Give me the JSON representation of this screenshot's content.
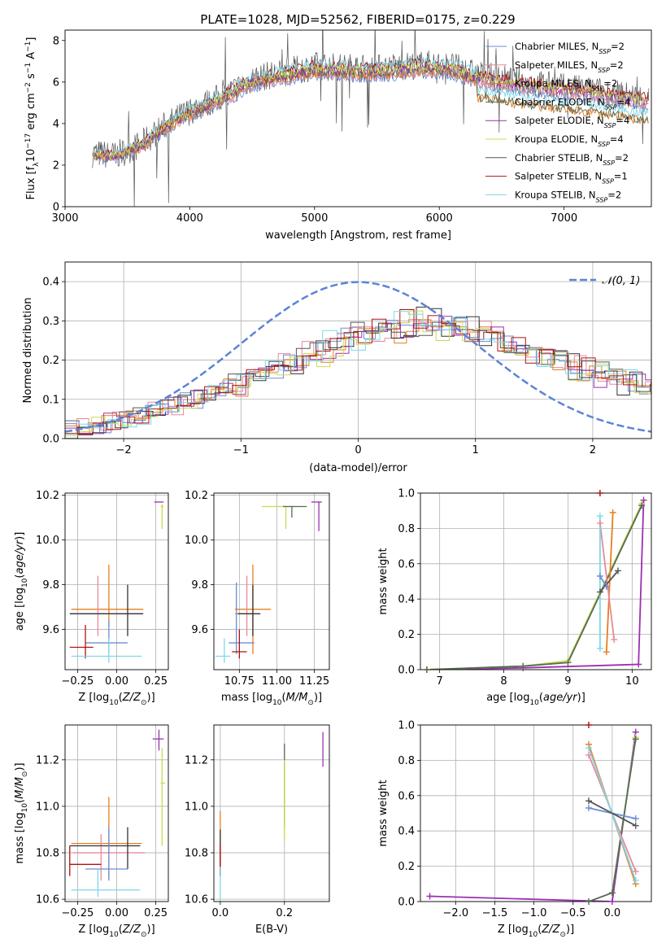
{
  "title": "PLATE=1028, MJD=52562, FIBERID=0175, z=0.229",
  "colors": [
    "#6b8fd6",
    "#e8889a",
    "#e67e22",
    "#333333",
    "#9b30b0",
    "#c8dc50",
    "#555555",
    "#b01010",
    "#7dd8e8"
  ],
  "chart_data": [
    {
      "id": "spectrum",
      "type": "line",
      "xlabel": "wavelength [Angstrom, rest frame]",
      "ylabel": "Flux [f_λ 10^-17 erg cm^-2 s^-1 A^-1]",
      "xlim": [
        3000,
        7700
      ],
      "ylim": [
        0,
        8.5
      ],
      "xticks": [
        3000,
        4000,
        5000,
        6000,
        7000
      ],
      "yticks": [
        0,
        2,
        4,
        6,
        8
      ],
      "grid": false,
      "legend_position": "top-right",
      "data_points_approx": [
        [
          3230,
          2.5
        ],
        [
          3400,
          2.4
        ],
        [
          3600,
          2.9
        ],
        [
          3800,
          3.8
        ],
        [
          4000,
          4.5
        ],
        [
          4300,
          5.3
        ],
        [
          4500,
          6.0
        ],
        [
          5000,
          6.6
        ],
        [
          5500,
          6.5
        ],
        [
          5900,
          6.7
        ],
        [
          6100,
          6.6
        ],
        [
          6300,
          6.2
        ],
        [
          6600,
          5.9
        ],
        [
          7000,
          5.6
        ],
        [
          7300,
          5.4
        ],
        [
          7600,
          5.1
        ]
      ],
      "series": [
        {
          "name": "Chabrier MILES, N_SSP=2",
          "color": "#6b8fd6"
        },
        {
          "name": "Salpeter MILES, N_SSP=2",
          "color": "#e8889a"
        },
        {
          "name": "Kroupa MILES, N_SSP=2",
          "color": "#e67e22"
        },
        {
          "name": "Chabrier ELODIE, N_SSP=4",
          "color": "#556b55"
        },
        {
          "name": "Salpeter ELODIE, N_SSP=4",
          "color": "#9b30b0"
        },
        {
          "name": "Kroupa ELODIE, N_SSP=4",
          "color": "#c8dc50"
        },
        {
          "name": "Chabrier STELIB, N_SSP=2",
          "color": "#555555"
        },
        {
          "name": "Salpeter STELIB, N_SSP=1",
          "color": "#b01010"
        },
        {
          "name": "Kroupa STELIB, N_SSP=2",
          "color": "#7dd8e8"
        }
      ]
    },
    {
      "id": "residuals",
      "type": "line",
      "xlabel": "(data-model)/error",
      "ylabel": "Normed distribution",
      "xlim": [
        -2.5,
        2.5
      ],
      "ylim": [
        0,
        0.45
      ],
      "xticks": [
        -2,
        -1,
        0,
        1,
        2
      ],
      "yticks": [
        0.0,
        0.1,
        0.2,
        0.3,
        0.4
      ],
      "grid": true,
      "legend_position": "top-right",
      "legend_label": "𝒩(0, 1)",
      "gaussian": {
        "mean": 0,
        "sigma": 1,
        "color": "#5b84d6"
      },
      "hist_envelope": [
        [
          -2.5,
          0.02
        ],
        [
          -2.0,
          0.05
        ],
        [
          -1.5,
          0.09
        ],
        [
          -1.0,
          0.14
        ],
        [
          -0.5,
          0.2
        ],
        [
          0.0,
          0.26
        ],
        [
          0.5,
          0.3
        ],
        [
          1.0,
          0.28
        ],
        [
          1.5,
          0.22
        ],
        [
          2.0,
          0.17
        ],
        [
          2.5,
          0.13
        ]
      ]
    },
    {
      "id": "age_vs_Z",
      "type": "scatter",
      "xlabel": "Z [log10(Z/Z⊙)]",
      "ylabel": "age  [log10(age/yr)]",
      "xlim": [
        -0.33,
        0.33
      ],
      "ylim": [
        9.42,
        10.21
      ],
      "xticks": [
        -0.25,
        0.0,
        0.25
      ],
      "yticks": [
        9.6,
        9.8,
        10.0,
        10.2
      ],
      "grid": true,
      "points": [
        {
          "x": 0.28,
          "y": 10.17,
          "xerr": [
            0.04,
            0.02
          ],
          "yerr": [
            0.0,
            0.0
          ],
          "color": "#9b30b0"
        },
        {
          "x": 0.29,
          "y": 10.15,
          "xerr": [
            0.01,
            0.01
          ],
          "yerr": [
            0.1,
            0.01
          ],
          "color": "#c8dc50"
        },
        {
          "x": -0.05,
          "y": 9.69,
          "xerr": [
            0.24,
            0.22
          ],
          "yerr": [
            0.08,
            0.2
          ],
          "color": "#e67e22"
        },
        {
          "x": -0.12,
          "y": 9.67,
          "xerr": [
            0.18,
            0.28
          ],
          "yerr": [
            0.1,
            0.17
          ],
          "color": "#e8889a"
        },
        {
          "x": 0.07,
          "y": 9.67,
          "xerr": [
            0.37,
            0.1
          ],
          "yerr": [
            0.1,
            0.13
          ],
          "color": "#333333"
        },
        {
          "x": -0.05,
          "y": 9.54,
          "xerr": [
            0.15,
            0.12
          ],
          "yerr": [
            0.05,
            0.1
          ],
          "color": "#6b8fd6"
        },
        {
          "x": -0.2,
          "y": 9.52,
          "xerr": [
            0.1,
            0.05
          ],
          "yerr": [
            0.05,
            0.1
          ],
          "color": "#b01010"
        },
        {
          "x": -0.05,
          "y": 9.48,
          "xerr": [
            0.24,
            0.21
          ],
          "yerr": [
            0.03,
            0.08
          ],
          "color": "#7dd8e8"
        }
      ]
    },
    {
      "id": "age_vs_mass",
      "type": "scatter",
      "xlabel": "mass [log10(M/M⊙)]",
      "ylabel": "",
      "xlim": [
        10.58,
        11.35
      ],
      "ylim": [
        9.42,
        10.21
      ],
      "xticks": [
        10.75,
        11.0,
        11.25
      ],
      "yticks": [
        9.6,
        9.8,
        10.0,
        10.2
      ],
      "grid": true,
      "points": [
        {
          "x": 11.28,
          "y": 10.17,
          "xerr": [
            0.05,
            0.02
          ],
          "yerr": [
            0.13,
            0.0
          ],
          "color": "#9b30b0"
        },
        {
          "x": 11.06,
          "y": 10.15,
          "xerr": [
            0.16,
            0.06
          ],
          "yerr": [
            0.1,
            0.0
          ],
          "color": "#c8dc50"
        },
        {
          "x": 11.1,
          "y": 10.15,
          "xerr": [
            0.06,
            0.1
          ],
          "yerr": [
            0.05,
            0.0
          ],
          "color": "#556b55"
        },
        {
          "x": 10.84,
          "y": 9.69,
          "xerr": [
            0.12,
            0.12
          ],
          "yerr": [
            0.2,
            0.2
          ],
          "color": "#e67e22"
        },
        {
          "x": 10.8,
          "y": 9.67,
          "xerr": [
            0.08,
            0.08
          ],
          "yerr": [
            0.1,
            0.17
          ],
          "color": "#e8889a"
        },
        {
          "x": 10.84,
          "y": 9.67,
          "xerr": [
            0.1,
            0.05
          ],
          "yerr": [
            0.1,
            0.13
          ],
          "color": "#333333"
        },
        {
          "x": 10.73,
          "y": 9.54,
          "xerr": [
            0.05,
            0.12
          ],
          "yerr": [
            0.05,
            0.27
          ],
          "color": "#6b8fd6"
        },
        {
          "x": 10.75,
          "y": 9.5,
          "xerr": [
            0.05,
            0.05
          ],
          "yerr": [
            0.03,
            0.1
          ],
          "color": "#b01010"
        },
        {
          "x": 10.65,
          "y": 9.48,
          "xerr": [
            0.06,
            0.04
          ],
          "yerr": [
            0.03,
            0.08
          ],
          "color": "#7dd8e8"
        }
      ]
    },
    {
      "id": "weight_vs_age",
      "type": "line",
      "xlabel": "age  [log10(age/yr)]",
      "ylabel": "mass weight",
      "xlim": [
        6.7,
        10.3
      ],
      "ylim": [
        0,
        1
      ],
      "xticks": [
        7,
        8,
        9,
        10
      ],
      "yticks": [
        0.0,
        0.2,
        0.4,
        0.6,
        0.8,
        1.0
      ],
      "grid": true,
      "series": [
        {
          "color": "#b01010",
          "points": [
            [
              9.5,
              1.0
            ]
          ]
        },
        {
          "color": "#9b30b0",
          "points": [
            [
              6.8,
              0.0
            ],
            [
              8.3,
              0.01
            ],
            [
              10.1,
              0.03
            ],
            [
              10.18,
              0.96
            ]
          ]
        },
        {
          "color": "#c8dc50",
          "points": [
            [
              6.8,
              0.0
            ],
            [
              8.3,
              0.02
            ],
            [
              9.0,
              0.05
            ],
            [
              10.15,
              0.94
            ]
          ]
        },
        {
          "color": "#556b55",
          "points": [
            [
              6.8,
              0.0
            ],
            [
              8.3,
              0.02
            ],
            [
              9.0,
              0.04
            ],
            [
              10.15,
              0.93
            ]
          ]
        },
        {
          "color": "#e67e22",
          "points": [
            [
              9.6,
              0.1
            ],
            [
              9.7,
              0.89
            ]
          ]
        },
        {
          "color": "#e8889a",
          "points": [
            [
              9.5,
              0.83
            ],
            [
              9.72,
              0.17
            ]
          ]
        },
        {
          "color": "#7dd8e8",
          "points": [
            [
              9.5,
              0.87
            ],
            [
              9.5,
              0.12
            ]
          ]
        },
        {
          "color": "#6b8fd6",
          "points": [
            [
              9.5,
              0.53
            ],
            [
              9.6,
              0.47
            ]
          ]
        },
        {
          "color": "#555555",
          "points": [
            [
              9.5,
              0.44
            ],
            [
              9.78,
              0.56
            ]
          ]
        }
      ]
    },
    {
      "id": "mass_vs_Z",
      "type": "scatter",
      "xlabel": "Z [log10(Z/Z⊙)]",
      "ylabel": "mass [log10(M/M⊙)]",
      "xlim": [
        -0.33,
        0.33
      ],
      "ylim": [
        10.59,
        11.35
      ],
      "xticks": [
        -0.25,
        0.0,
        0.25
      ],
      "yticks": [
        10.6,
        10.8,
        11.0,
        11.2
      ],
      "grid": true,
      "points": [
        {
          "x": 0.27,
          "y": 11.29,
          "xerr": [
            0.04,
            0.03
          ],
          "yerr": [
            0.05,
            0.04
          ],
          "color": "#9b30b0"
        },
        {
          "x": 0.29,
          "y": 11.1,
          "xerr": [
            0.01,
            0.02
          ],
          "yerr": [
            0.27,
            0.15
          ],
          "color": "#c8dc50"
        },
        {
          "x": -0.05,
          "y": 10.84,
          "xerr": [
            0.24,
            0.21
          ],
          "yerr": [
            0.15,
            0.2
          ],
          "color": "#e67e22"
        },
        {
          "x": -0.1,
          "y": 10.8,
          "xerr": [
            0.18,
            0.28
          ],
          "yerr": [
            0.12,
            0.08
          ],
          "color": "#e8889a"
        },
        {
          "x": 0.07,
          "y": 10.83,
          "xerr": [
            0.37,
            0.08
          ],
          "yerr": [
            0.1,
            0.08
          ],
          "color": "#333333"
        },
        {
          "x": -0.05,
          "y": 10.73,
          "xerr": [
            0.15,
            0.12
          ],
          "yerr": [
            0.05,
            0.18
          ],
          "color": "#6b8fd6"
        },
        {
          "x": -0.3,
          "y": 10.75,
          "xerr": [
            0.0,
            0.2
          ],
          "yerr": [
            0.05,
            0.08
          ],
          "color": "#b01010"
        },
        {
          "x": -0.12,
          "y": 10.64,
          "xerr": [
            0.17,
            0.27
          ],
          "yerr": [
            0.03,
            0.09
          ],
          "color": "#7dd8e8"
        }
      ]
    },
    {
      "id": "mass_vs_ebv",
      "type": "scatter",
      "xlabel": "E(B-V)",
      "ylabel": "",
      "xlim": [
        -0.02,
        0.34
      ],
      "ylim": [
        10.59,
        11.35
      ],
      "xticks": [
        0.0,
        0.2
      ],
      "yticks": [
        10.6,
        10.8,
        11.0,
        11.2
      ],
      "grid": true,
      "points": [
        {
          "x": 0.32,
          "y": 11.25,
          "xerr": [
            0.0,
            0.0
          ],
          "yerr": [
            0.08,
            0.07
          ],
          "color": "#9b30b0"
        },
        {
          "x": 0.2,
          "y": 11.1,
          "xerr": [
            0.0,
            0.0
          ],
          "yerr": [
            0.19,
            0.17
          ],
          "color": "#556b55"
        },
        {
          "x": 0.2,
          "y": 11.05,
          "xerr": [
            0.0,
            0.0
          ],
          "yerr": [
            0.2,
            0.15
          ],
          "color": "#c8dc50"
        },
        {
          "x": 0.0,
          "y": 10.85,
          "xerr": [
            0.0,
            0.0
          ],
          "yerr": [
            0.15,
            0.13
          ],
          "color": "#e67e22"
        },
        {
          "x": 0.0,
          "y": 10.8,
          "xerr": [
            0.0,
            0.0
          ],
          "yerr": [
            0.1,
            0.1
          ],
          "color": "#333333"
        },
        {
          "x": 0.0,
          "y": 10.76,
          "xerr": [
            0.0,
            0.0
          ],
          "yerr": [
            0.06,
            0.08
          ],
          "color": "#b01010"
        },
        {
          "x": 0.0,
          "y": 10.68,
          "xerr": [
            0.0,
            0.0
          ],
          "yerr": [
            0.08,
            0.06
          ],
          "color": "#7dd8e8"
        }
      ]
    },
    {
      "id": "weight_vs_Z",
      "type": "line",
      "xlabel": "Z [log10(Z/Z⊙)]",
      "ylabel": "mass weight",
      "xlim": [
        -2.45,
        0.5
      ],
      "ylim": [
        0,
        1
      ],
      "xticks": [
        -2.0,
        -1.5,
        -1.0,
        -0.5,
        0.0
      ],
      "yticks": [
        0.0,
        0.2,
        0.4,
        0.6,
        0.8,
        1.0
      ],
      "grid": true,
      "series": [
        {
          "color": "#b01010",
          "points": [
            [
              -0.3,
              1.0
            ]
          ]
        },
        {
          "color": "#9b30b0",
          "points": [
            [
              -2.33,
              0.03
            ],
            [
              0.0,
              0.0
            ],
            [
              0.3,
              0.96
            ]
          ]
        },
        {
          "color": "#c8dc50",
          "points": [
            [
              0.0,
              0.05
            ],
            [
              0.3,
              0.93
            ]
          ]
        },
        {
          "color": "#556b55",
          "points": [
            [
              -0.3,
              0.0
            ],
            [
              0.0,
              0.05
            ],
            [
              0.3,
              0.92
            ]
          ]
        },
        {
          "color": "#e67e22",
          "points": [
            [
              -0.3,
              0.89
            ],
            [
              0.3,
              0.1
            ]
          ]
        },
        {
          "color": "#e8889a",
          "points": [
            [
              -0.3,
              0.83
            ],
            [
              0.3,
              0.17
            ]
          ]
        },
        {
          "color": "#7dd8e8",
          "points": [
            [
              -0.3,
              0.87
            ],
            [
              0.3,
              0.12
            ]
          ]
        },
        {
          "color": "#6b8fd6",
          "points": [
            [
              -0.3,
              0.53
            ],
            [
              0.3,
              0.47
            ]
          ]
        },
        {
          "color": "#555555",
          "points": [
            [
              -0.3,
              0.57
            ],
            [
              0.3,
              0.43
            ]
          ]
        }
      ]
    }
  ]
}
